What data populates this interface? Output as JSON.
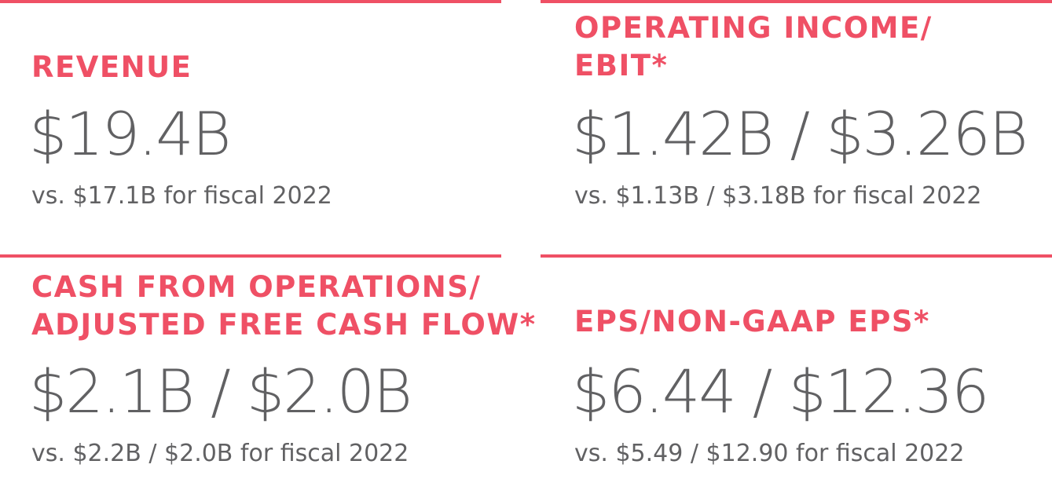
{
  "colors": {
    "accent": "#ef5065",
    "text": "#616163"
  },
  "metrics": [
    {
      "label_lines": [
        "REVENUE"
      ],
      "value": "$19.4B",
      "comparison": "vs. $17.1B for fiscal 2022"
    },
    {
      "label_lines": [
        "OPERATING INCOME/",
        "EBIT*"
      ],
      "value": "$1.42B / $3.26B",
      "comparison": "vs. $1.13B / $3.18B for fiscal 2022"
    },
    {
      "label_lines": [
        "CASH FROM OPERATIONS/",
        "ADJUSTED FREE CASH FLOW*"
      ],
      "value": "$2.1B / $2.0B",
      "comparison": "vs. $2.2B / $2.0B for fiscal 2022"
    },
    {
      "label_lines": [
        "EPS/NON-GAAP EPS*"
      ],
      "value": "$6.44 / $12.36",
      "comparison": "vs. $5.49 / $12.90 for fiscal 2022"
    }
  ]
}
